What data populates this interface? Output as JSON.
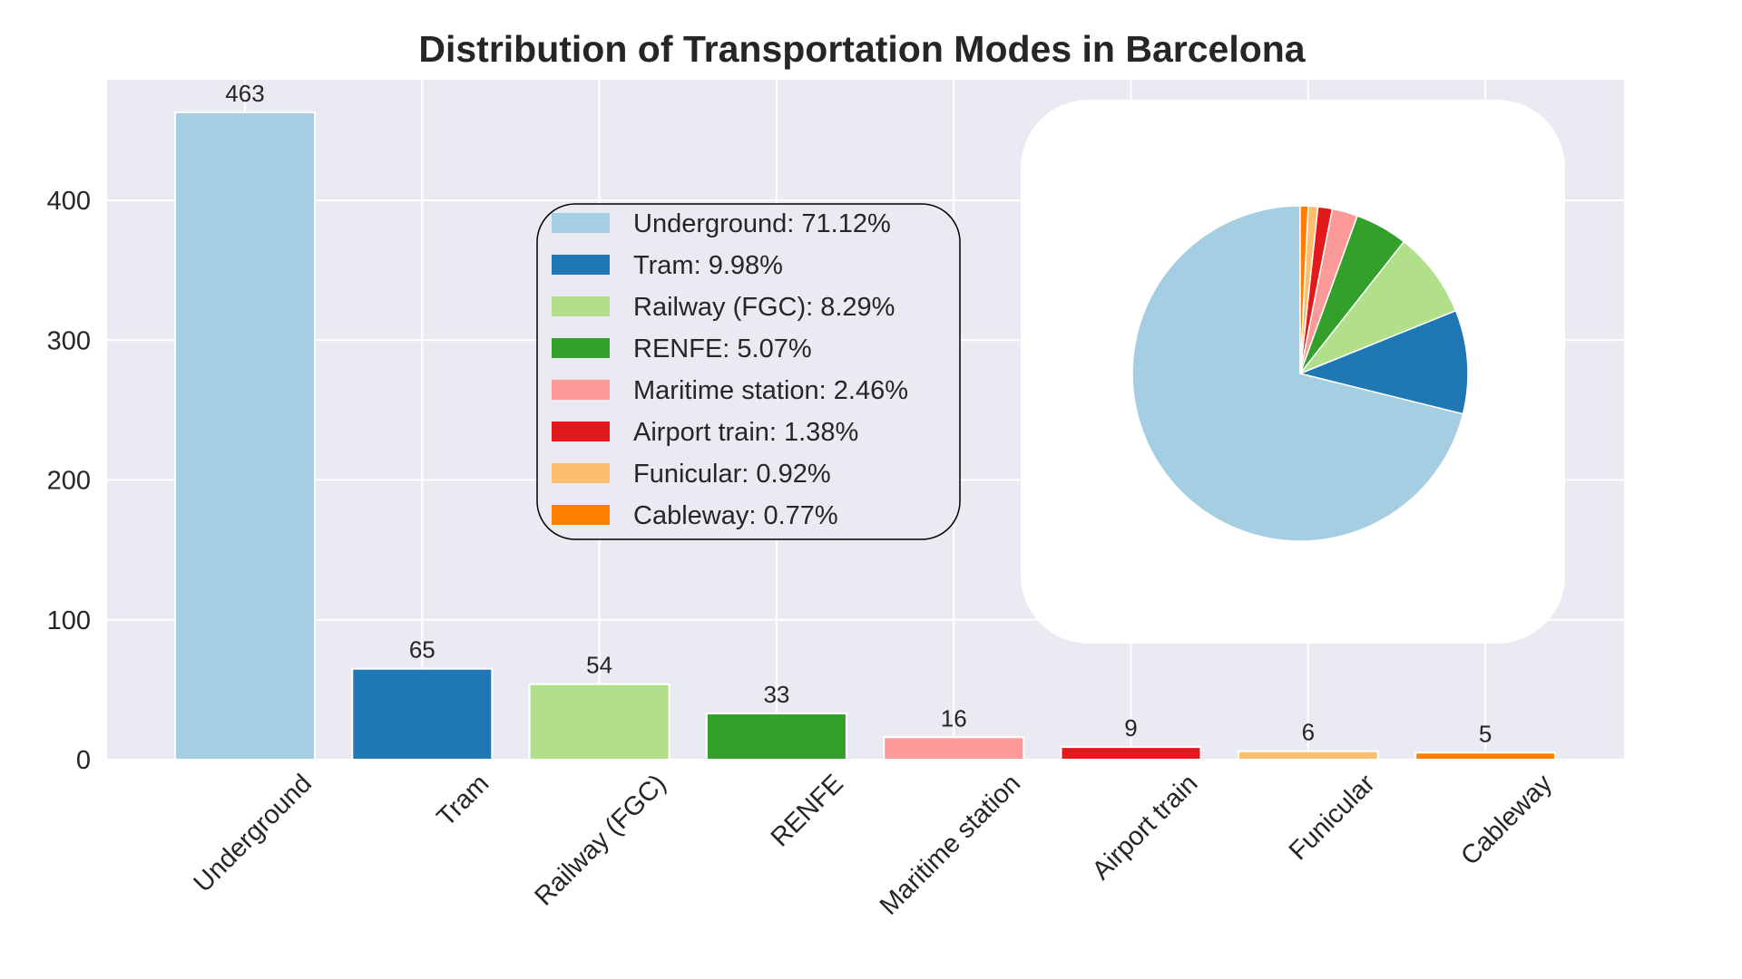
{
  "chart_data": [
    {
      "type": "bar",
      "title": "Distribution of Transportation Modes in Barcelona",
      "xlabel": "",
      "ylabel": "",
      "ylim": [
        0,
        480
      ],
      "yticks": [
        0,
        100,
        200,
        300,
        400
      ],
      "grid": true,
      "categories": [
        "Underground",
        "Tram",
        "Railway (FGC)",
        "RENFE",
        "Maritime station",
        "Airport train",
        "Funicular",
        "Cableway"
      ],
      "values": [
        463,
        65,
        54,
        33,
        16,
        9,
        6,
        5
      ],
      "colors": [
        "#a6cee3",
        "#1f78b4",
        "#b2df8a",
        "#33a02c",
        "#fb9a99",
        "#e31a1c",
        "#fdbf6f",
        "#ff7f00"
      ],
      "legend": {
        "placement": "center",
        "entries": [
          "Underground: 71.12%",
          "Tram: 9.98%",
          "Railway (FGC): 8.29%",
          "RENFE: 5.07%",
          "Maritime station: 2.46%",
          "Airport train: 1.38%",
          "Funicular: 0.92%",
          "Cableway: 0.77%"
        ]
      }
    },
    {
      "type": "pie",
      "placement": "inset-top-right",
      "labels": [
        "Underground",
        "Tram",
        "Railway (FGC)",
        "RENFE",
        "Maritime station",
        "Airport train",
        "Funicular",
        "Cableway"
      ],
      "values": [
        71.12,
        9.98,
        8.29,
        5.07,
        2.46,
        1.38,
        0.92,
        0.77
      ],
      "colors": [
        "#a6cee3",
        "#1f78b4",
        "#b2df8a",
        "#33a02c",
        "#fb9a99",
        "#e31a1c",
        "#fdbf6f",
        "#ff7f00"
      ]
    }
  ]
}
